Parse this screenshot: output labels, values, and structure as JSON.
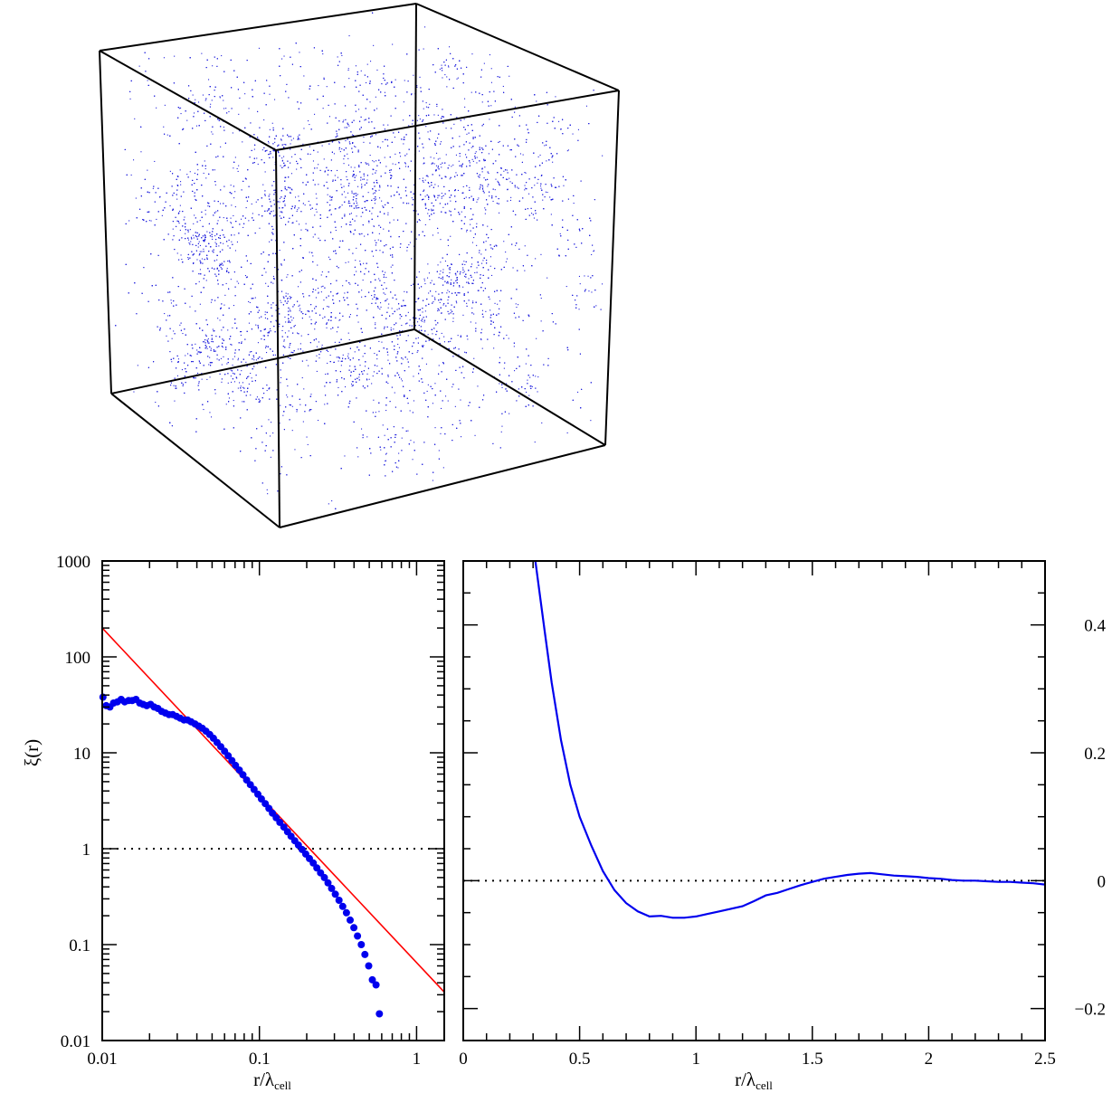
{
  "cube": {
    "point_color": "#2222dd",
    "edge_color": "#000000",
    "point_count": 9000
  },
  "chart_data": [
    {
      "type": "scatter",
      "xscale": "log",
      "yscale": "log",
      "xlim": [
        0.01,
        1.5
      ],
      "ylim": [
        0.01,
        1000
      ],
      "xlabel": "r/λ",
      "xlabel_sub": "cell",
      "ylabel": "ξ(r)",
      "x_ticks": [
        {
          "value": 0.01,
          "label": "0.01"
        },
        {
          "value": 0.1,
          "label": "0.1"
        },
        {
          "value": 1,
          "label": "1"
        }
      ],
      "y_ticks": [
        {
          "value": 0.01,
          "label": "0.01"
        },
        {
          "value": 0.1,
          "label": "0.1"
        },
        {
          "value": 1,
          "label": "1"
        },
        {
          "value": 10,
          "label": "10"
        },
        {
          "value": 100,
          "label": "100"
        },
        {
          "value": 1000,
          "label": "1000"
        }
      ],
      "reference_line": {
        "y": 1,
        "style": "dotted",
        "color": "#000000"
      },
      "power_law_fit": {
        "x": [
          0.01,
          1.5
        ],
        "y": [
          200,
          0.032
        ],
        "color": "#ff0000"
      },
      "series": [
        {
          "color": "#0000ee",
          "marker": "filled-circle",
          "points": [
            [
              0.0101,
              38
            ],
            [
              0.0106,
              31
            ],
            [
              0.0112,
              30
            ],
            [
              0.0118,
              33
            ],
            [
              0.0125,
              34
            ],
            [
              0.0132,
              36
            ],
            [
              0.0139,
              34
            ],
            [
              0.0147,
              35
            ],
            [
              0.0155,
              35
            ],
            [
              0.0164,
              36
            ],
            [
              0.0173,
              33
            ],
            [
              0.0182,
              32
            ],
            [
              0.0192,
              31
            ],
            [
              0.0203,
              32
            ],
            [
              0.0214,
              30
            ],
            [
              0.0226,
              29
            ],
            [
              0.0239,
              27
            ],
            [
              0.0252,
              26
            ],
            [
              0.0266,
              25
            ],
            [
              0.0281,
              25
            ],
            [
              0.0297,
              24
            ],
            [
              0.0313,
              23
            ],
            [
              0.0331,
              22
            ],
            [
              0.0349,
              22
            ],
            [
              0.0368,
              21
            ],
            [
              0.0389,
              20
            ],
            [
              0.0411,
              19
            ],
            [
              0.0433,
              18
            ],
            [
              0.0457,
              16.8
            ],
            [
              0.0483,
              15.5
            ],
            [
              0.051,
              14.2
            ],
            [
              0.0538,
              12.8
            ],
            [
              0.0568,
              11.6
            ],
            [
              0.06,
              10.4
            ],
            [
              0.0633,
              9.3
            ],
            [
              0.0668,
              8.3
            ],
            [
              0.0705,
              7.4
            ],
            [
              0.0745,
              6.6
            ],
            [
              0.0786,
              5.9
            ],
            [
              0.083,
              5.2
            ],
            [
              0.0876,
              4.65
            ],
            [
              0.0925,
              4.15
            ],
            [
              0.0977,
              3.7
            ],
            [
              0.103,
              3.3
            ],
            [
              0.109,
              2.95
            ],
            [
              0.115,
              2.63
            ],
            [
              0.121,
              2.35
            ],
            [
              0.128,
              2.1
            ],
            [
              0.135,
              1.88
            ],
            [
              0.143,
              1.68
            ],
            [
              0.151,
              1.5
            ],
            [
              0.159,
              1.35
            ],
            [
              0.168,
              1.21
            ],
            [
              0.177,
              1.09
            ],
            [
              0.187,
              0.98
            ],
            [
              0.197,
              0.88
            ],
            [
              0.208,
              0.79
            ],
            [
              0.22,
              0.71
            ],
            [
              0.232,
              0.63
            ],
            [
              0.245,
              0.56
            ],
            [
              0.259,
              0.5
            ],
            [
              0.273,
              0.44
            ],
            [
              0.288,
              0.385
            ],
            [
              0.304,
              0.335
            ],
            [
              0.321,
              0.29
            ],
            [
              0.339,
              0.25
            ],
            [
              0.358,
              0.215
            ],
            [
              0.378,
              0.18
            ],
            [
              0.399,
              0.15
            ],
            [
              0.421,
              0.123
            ],
            [
              0.445,
              0.1
            ],
            [
              0.469,
              0.079
            ],
            [
              0.496,
              0.06
            ],
            [
              0.523,
              0.043
            ],
            [
              0.552,
              0.038
            ],
            [
              0.58,
              0.019
            ]
          ]
        }
      ]
    },
    {
      "type": "line",
      "xlim": [
        0,
        2.5
      ],
      "ylim": [
        -0.25,
        0.5
      ],
      "xlabel": "r/λ",
      "xlabel_sub": "cell",
      "x_ticks": [
        {
          "value": 0,
          "label": "0"
        },
        {
          "value": 0.5,
          "label": "0.5"
        },
        {
          "value": 1,
          "label": "1"
        },
        {
          "value": 1.5,
          "label": "1.5"
        },
        {
          "value": 2,
          "label": "2"
        },
        {
          "value": 2.5,
          "label": "2.5"
        }
      ],
      "y_ticks": [
        {
          "value": -0.2,
          "label": "−0.2"
        },
        {
          "value": 0,
          "label": "0"
        },
        {
          "value": 0.2,
          "label": "0.2"
        },
        {
          "value": 0.4,
          "label": "0.4"
        }
      ],
      "reference_line": {
        "y": 0,
        "style": "dotted",
        "color": "#000000"
      },
      "series": [
        {
          "color": "#0000ee",
          "x": [
            0.31,
            0.35,
            0.38,
            0.42,
            0.46,
            0.5,
            0.55,
            0.6,
            0.65,
            0.7,
            0.75,
            0.8,
            0.85,
            0.9,
            0.95,
            1.0,
            1.05,
            1.1,
            1.15,
            1.2,
            1.25,
            1.3,
            1.35,
            1.4,
            1.45,
            1.5,
            1.55,
            1.6,
            1.65,
            1.7,
            1.75,
            1.8,
            1.85,
            1.9,
            1.95,
            2.0,
            2.05,
            2.1,
            2.15,
            2.2,
            2.25,
            2.3,
            2.35,
            2.4,
            2.45,
            2.5
          ],
          "y": [
            0.5,
            0.39,
            0.31,
            0.22,
            0.15,
            0.1,
            0.055,
            0.015,
            -0.015,
            -0.035,
            -0.048,
            -0.056,
            -0.055,
            -0.058,
            -0.058,
            -0.056,
            -0.052,
            -0.048,
            -0.044,
            -0.04,
            -0.032,
            -0.023,
            -0.019,
            -0.013,
            -0.007,
            -0.002,
            0.003,
            0.006,
            0.009,
            0.011,
            0.012,
            0.01,
            0.008,
            0.007,
            0.006,
            0.004,
            0.003,
            0.001,
            0.0,
            0.0,
            -0.001,
            -0.002,
            -0.002,
            -0.003,
            -0.004,
            -0.006
          ]
        }
      ]
    }
  ]
}
